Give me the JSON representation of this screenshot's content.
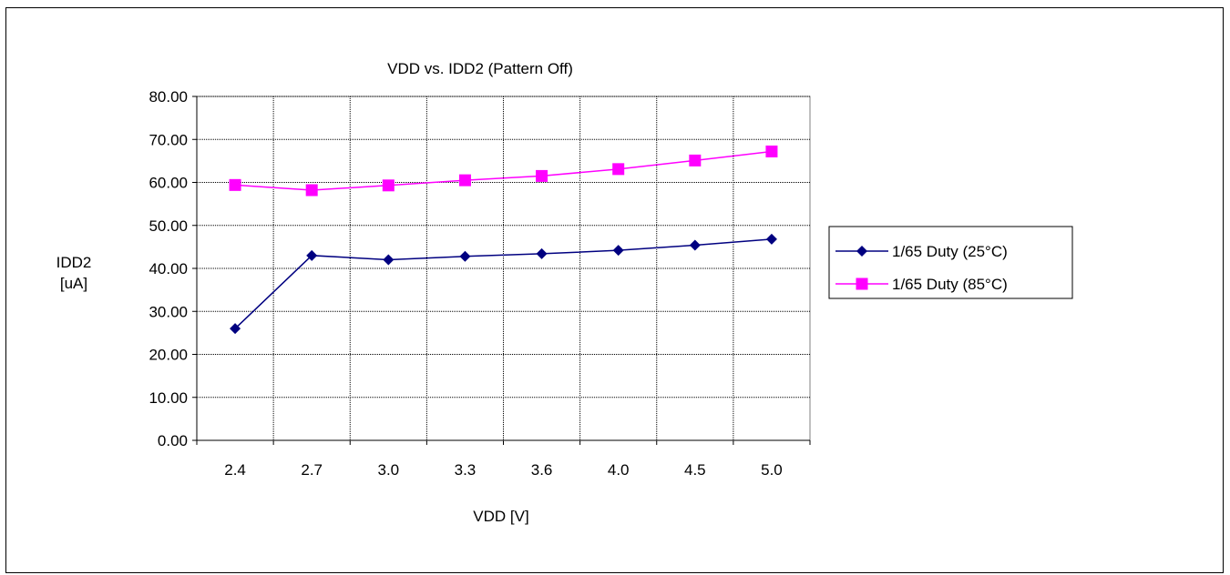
{
  "chart_data": {
    "type": "line",
    "title": "VDD vs. IDD2 (Pattern Off)",
    "xlabel": "VDD [V]",
    "ylabel": [
      "IDD2",
      "[uA]"
    ],
    "categories": [
      "2.4",
      "2.7",
      "3.0",
      "3.3",
      "3.6",
      "4.0",
      "4.5",
      "5.0"
    ],
    "y_ticks": [
      "0.00",
      "10.00",
      "20.00",
      "30.00",
      "40.00",
      "50.00",
      "60.00",
      "70.00",
      "80.00"
    ],
    "ylim": [
      0,
      80
    ],
    "grid": true,
    "legend_position": "right",
    "series": [
      {
        "name": "1/65 Duty (25°C)",
        "color": "#000080",
        "marker": "diamond",
        "values": [
          26.0,
          43.0,
          42.0,
          42.8,
          43.4,
          44.2,
          45.4,
          46.8
        ]
      },
      {
        "name": "1/65 Duty (85°C)",
        "color": "#ff00ff",
        "marker": "square",
        "values": [
          59.4,
          58.2,
          59.3,
          60.5,
          61.5,
          63.1,
          65.1,
          67.2
        ]
      }
    ]
  }
}
